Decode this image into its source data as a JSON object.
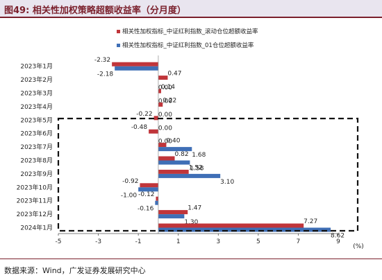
{
  "figure": {
    "number": "图49:",
    "title": "相关性加权策略超额收益率（分月度）",
    "source": "数据来源：Wind，广发证券发展研究中心"
  },
  "chart_data": {
    "type": "bar",
    "orientation": "horizontal",
    "categories": [
      "2023年1月",
      "2023年2月",
      "2023年3月",
      "2023年4月",
      "2023年5月",
      "2023年6月",
      "2023年7月",
      "2023年8月",
      "2023年9月",
      "2023年10月",
      "2023年11月",
      "2023年12月",
      "2024年1月"
    ],
    "series": [
      {
        "name": "相关性加权指标_中证红利指数_滚动仓位超额收益率",
        "color": "#c0353a",
        "values": [
          -2.32,
          0.47,
          0.14,
          0.22,
          -0.22,
          -0.48,
          0.4,
          0.82,
          1.52,
          -0.92,
          -0.12,
          1.47,
          7.27
        ]
      },
      {
        "name": "相关性加权指标_中证红利指数_01仓位超额收益率",
        "color": "#3f6fb6",
        "values": [
          -2.18,
          0.0,
          0.0,
          0.0,
          0.0,
          0.0,
          1.68,
          1.58,
          3.1,
          -1.0,
          -0.16,
          1.3,
          8.62
        ]
      }
    ],
    "x_ticks": [
      "-5",
      "-3",
      "-1",
      "1",
      "3",
      "5",
      "7",
      "9"
    ],
    "xlim": [
      -5,
      9
    ],
    "x_unit": "(%)",
    "legend_position": "top-right",
    "highlight_box": "dashed box around 2023年6月 to 2024年1月"
  }
}
